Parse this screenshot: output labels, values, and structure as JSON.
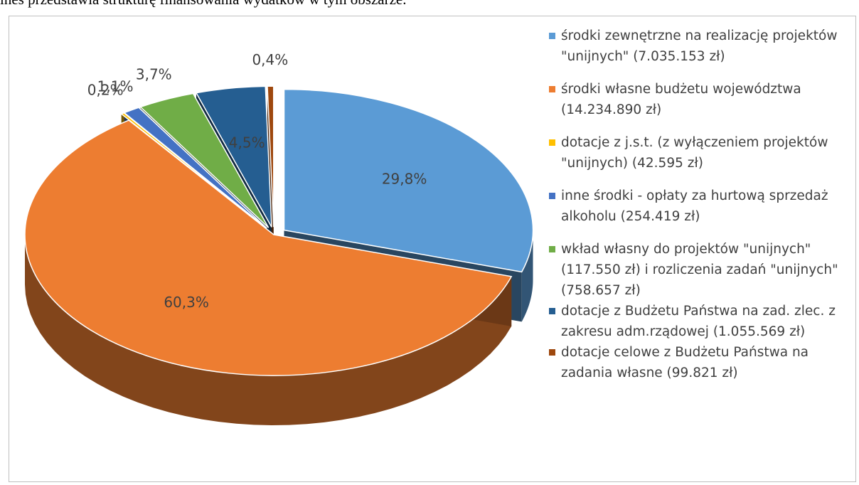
{
  "caption": "ines przedstawia strukturę finansowania wydatków w tym obszarze.",
  "chart_data": {
    "type": "pie",
    "categories": [
      "środki zewnętrzne na realizację projektów \"unijnych\" (7.035.153 zł)",
      "środki własne budżetu województwa (14.234.890 zł)",
      "dotacje z j.s.t. (z wyłączeniem projektów \"unijnych) (42.595 zł)",
      "inne środki - opłaty za hurtową sprzedaż alkoholu (254.419 zł)",
      "wkład własny do projektów \"unijnych\"  (117.550 zł) i rozliczenia zadań \"unijnych\" (758.657 zł)",
      "dotacje z Budżetu Państwa na zad. zlec. z zakresu adm.rządowej (1.055.569 zł)",
      "dotacje celowe z Budżetu Państwa na zadania własne (99.821 zł)"
    ],
    "values": [
      29.8,
      60.3,
      0.2,
      1.1,
      3.7,
      4.5,
      0.4
    ],
    "value_labels": [
      "29,8%",
      "60,3%",
      "0,2%",
      "1,1%",
      "3,7%",
      "4,5%",
      "0,4%"
    ],
    "colors": [
      "#5b9bd5",
      "#ed7d31",
      "#ffc000",
      "#4472c4",
      "#70ad47",
      "#255e91",
      "#9e480e"
    ],
    "legend": "right"
  }
}
